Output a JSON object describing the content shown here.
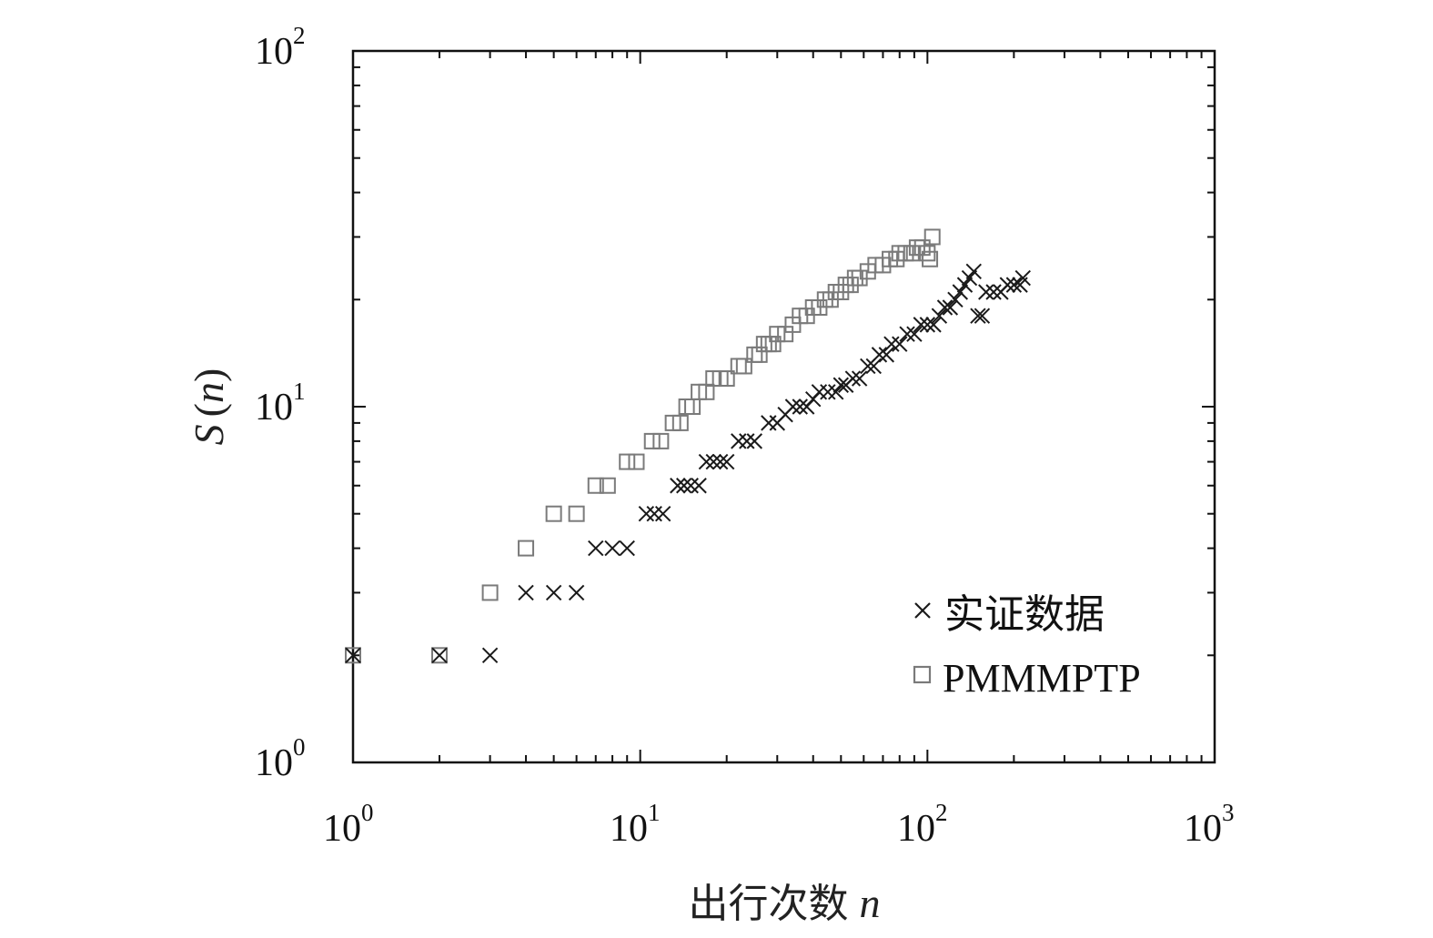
{
  "chart_data": {
    "type": "scatter",
    "xscale": "log",
    "yscale": "log",
    "xlim": [
      1,
      1000
    ],
    "ylim": [
      1,
      100
    ],
    "xlabel": "出行次数",
    "xlabel_var": "n",
    "ylabel_var": "S",
    "ylabel_arg": "n",
    "x_ticks": [
      {
        "base": "10",
        "exp": "0"
      },
      {
        "base": "10",
        "exp": "1"
      },
      {
        "base": "10",
        "exp": "2"
      },
      {
        "base": "10",
        "exp": "3"
      }
    ],
    "y_ticks": [
      {
        "base": "10",
        "exp": "0"
      },
      {
        "base": "10",
        "exp": "1"
      },
      {
        "base": "10",
        "exp": "2"
      }
    ],
    "grid": false,
    "legend_position": "bottom-right",
    "series": [
      {
        "name": "实证数据",
        "marker": "x",
        "color": "#1a1a1a",
        "points": [
          [
            1,
            2
          ],
          [
            2,
            2
          ],
          [
            3,
            2
          ],
          [
            4,
            3
          ],
          [
            5,
            3
          ],
          [
            6,
            3
          ],
          [
            7,
            4
          ],
          [
            8,
            4
          ],
          [
            9,
            4
          ],
          [
            10.5,
            5
          ],
          [
            11.2,
            5
          ],
          [
            12,
            5
          ],
          [
            13.5,
            6
          ],
          [
            14.2,
            6
          ],
          [
            15,
            6
          ],
          [
            16,
            6
          ],
          [
            17,
            7
          ],
          [
            18,
            7
          ],
          [
            19,
            7
          ],
          [
            20,
            7
          ],
          [
            22,
            8
          ],
          [
            23.5,
            8
          ],
          [
            25,
            8
          ],
          [
            28,
            9
          ],
          [
            30,
            9
          ],
          [
            32,
            9.5
          ],
          [
            34,
            10
          ],
          [
            36,
            10
          ],
          [
            38,
            10
          ],
          [
            40,
            10.5
          ],
          [
            42,
            11
          ],
          [
            45,
            11
          ],
          [
            48,
            11
          ],
          [
            50,
            11.5
          ],
          [
            52,
            11.5
          ],
          [
            55,
            12
          ],
          [
            58,
            12
          ],
          [
            62,
            13
          ],
          [
            65,
            13
          ],
          [
            68,
            14
          ],
          [
            72,
            14
          ],
          [
            75,
            15
          ],
          [
            80,
            15
          ],
          [
            85,
            16
          ],
          [
            90,
            16
          ],
          [
            95,
            17
          ],
          [
            100,
            17
          ],
          [
            105,
            17
          ],
          [
            110,
            18
          ],
          [
            115,
            19
          ],
          [
            120,
            19
          ],
          [
            125,
            20
          ],
          [
            130,
            21
          ],
          [
            135,
            22
          ],
          [
            140,
            23
          ],
          [
            145,
            24
          ],
          [
            150,
            18
          ],
          [
            155,
            18
          ],
          [
            160,
            21
          ],
          [
            170,
            21
          ],
          [
            180,
            21
          ],
          [
            190,
            22
          ],
          [
            200,
            22
          ],
          [
            210,
            22
          ],
          [
            215,
            23
          ]
        ]
      },
      {
        "name": "PMMMPTP",
        "marker": "square",
        "color": "#7a7a7a",
        "points": [
          [
            1,
            2
          ],
          [
            2,
            2
          ],
          [
            3,
            3
          ],
          [
            4,
            4
          ],
          [
            5,
            5
          ],
          [
            6,
            5
          ],
          [
            7,
            6
          ],
          [
            7.7,
            6
          ],
          [
            9,
            7
          ],
          [
            9.7,
            7
          ],
          [
            11,
            8
          ],
          [
            11.8,
            8
          ],
          [
            13,
            9
          ],
          [
            13.8,
            9
          ],
          [
            14.5,
            10
          ],
          [
            15.2,
            10
          ],
          [
            16,
            11
          ],
          [
            17,
            11
          ],
          [
            18,
            12
          ],
          [
            19,
            12
          ],
          [
            20,
            12
          ],
          [
            22,
            13
          ],
          [
            23,
            13
          ],
          [
            25,
            14
          ],
          [
            26,
            14
          ],
          [
            27,
            15
          ],
          [
            28,
            15
          ],
          [
            29,
            15
          ],
          [
            30,
            16
          ],
          [
            32,
            16
          ],
          [
            34,
            17
          ],
          [
            36,
            18
          ],
          [
            38,
            18
          ],
          [
            40,
            19
          ],
          [
            42,
            19
          ],
          [
            44,
            20
          ],
          [
            46,
            20
          ],
          [
            48,
            21
          ],
          [
            50,
            21
          ],
          [
            52,
            22
          ],
          [
            54,
            22
          ],
          [
            56,
            23
          ],
          [
            58,
            23
          ],
          [
            62,
            24
          ],
          [
            66,
            25
          ],
          [
            70,
            25
          ],
          [
            74,
            26
          ],
          [
            78,
            26
          ],
          [
            80,
            27
          ],
          [
            84,
            27
          ],
          [
            88,
            27
          ],
          [
            92,
            28
          ],
          [
            96,
            28
          ],
          [
            100,
            27
          ],
          [
            102,
            26
          ],
          [
            104,
            30
          ]
        ]
      }
    ]
  }
}
